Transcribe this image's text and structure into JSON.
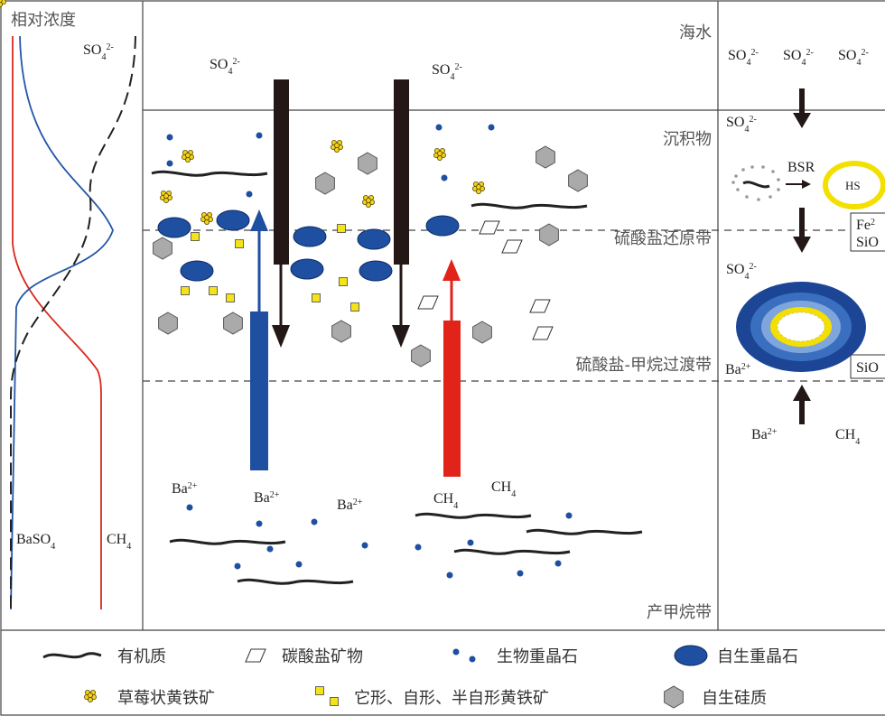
{
  "concentration_panel": {
    "title": "相对浓度",
    "so4": {
      "base": "SO",
      "sub": "4",
      "sup": "2-"
    },
    "baso4": {
      "base": "BaSO",
      "sub": "4"
    },
    "ch4": {
      "base": "CH",
      "sub": "4"
    }
  },
  "zones": {
    "seawater": "海水",
    "sediment": "沉积物",
    "sulfate_reduction": "硫酸盐还原带",
    "smtz": "硫酸盐-甲烷过渡带",
    "methanogenic": "产甲烷带"
  },
  "profile_labels": [
    {
      "base": "SO",
      "sub": "4",
      "sup": "2-"
    },
    {
      "base": "SO",
      "sub": "4",
      "sup": "2-"
    },
    {
      "base": "Ba",
      "sup": "2+"
    },
    {
      "base": "Ba",
      "sup": "2+"
    },
    {
      "base": "Ba",
      "sup": "2+"
    },
    {
      "base": "CH",
      "sub": "4"
    },
    {
      "base": "CH",
      "sub": "4"
    }
  ],
  "process_labels": [
    {
      "base": "SO",
      "sub": "4",
      "sup": "2-"
    },
    {
      "base": "SO",
      "sub": "4",
      "sup": "2-"
    },
    {
      "base": "SO",
      "sub": "4",
      "sup": "2-"
    },
    {
      "base": "SO",
      "sub": "4",
      "sup": "2-"
    },
    {
      "base": "BSR"
    },
    {
      "base": "HS"
    },
    {
      "base": "Fe",
      "sup": "2"
    },
    {
      "base": "SiO"
    },
    {
      "base": "SO",
      "sub": "4",
      "sup": "2-"
    },
    {
      "base": "Ba",
      "sup": "2+"
    },
    {
      "base": "SiO"
    },
    {
      "base": "Ba",
      "sup": "2+"
    },
    {
      "base": "CH",
      "sub": "4"
    }
  ],
  "legend": [
    "有机质",
    "碳酸盐矿物",
    "生物重晶石",
    "自生重晶石",
    "草莓状黄铁矿",
    "它形、自形、半自形黄铁矿",
    "自生硅质"
  ]
}
